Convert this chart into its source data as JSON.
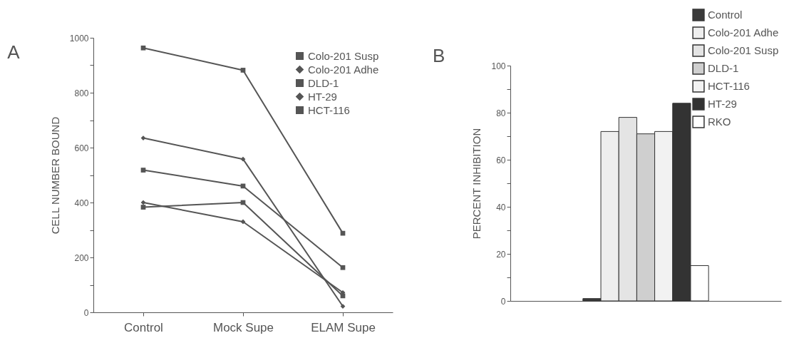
{
  "chart_data": [
    {
      "type": "line",
      "title": "A",
      "ylabel": "CELL NUMBER BOUND",
      "categories": [
        "Control",
        "Mock Supe",
        "ELAM Supe"
      ],
      "series": [
        {
          "name": "Colo-201 Susp",
          "color": "#555555",
          "marker": "square",
          "values": [
            383,
            400,
            60
          ]
        },
        {
          "name": "Colo-201 Adhe",
          "color": "#555555",
          "marker": "diamond",
          "values": [
            635,
            558,
            22
          ]
        },
        {
          "name": "DLD-1",
          "color": "#555555",
          "marker": "square",
          "values": [
            518,
            460,
            163
          ]
        },
        {
          "name": "HT-29",
          "color": "#555555",
          "marker": "diamond",
          "values": [
            400,
            330,
            72
          ]
        },
        {
          "name": "HCT-116",
          "color": "#555555",
          "marker": "square",
          "values": [
            963,
            882,
            288
          ]
        }
      ],
      "ylim": [
        0,
        1000
      ],
      "yticks": [
        0,
        {
          "value": 100,
          "label": null
        },
        200,
        {
          "value": 300,
          "label": null
        },
        400,
        {
          "value": 500,
          "label": null
        },
        600,
        {
          "value": 700,
          "label": null
        },
        800,
        {
          "value": 900,
          "label": null
        },
        1000
      ],
      "legend": "top right",
      "grid": false
    },
    {
      "type": "bar",
      "title": "B",
      "ylabel": "PERCENT INHIBITION",
      "categories": [
        null
      ],
      "series": [
        {
          "name": "Control",
          "color": "#3a3a3a",
          "values": [
            1
          ]
        },
        {
          "name": "Colo-201 Adhe",
          "color": "#eeeeee",
          "values": [
            72
          ]
        },
        {
          "name": "Colo-201 Susp",
          "color": "#e4e4e4",
          "values": [
            78
          ]
        },
        {
          "name": "DLD-1",
          "color": "#cfcfcf",
          "values": [
            71
          ]
        },
        {
          "name": "HCT-116",
          "color": "#f2f2f2",
          "values": [
            72
          ]
        },
        {
          "name": "HT-29",
          "color": "#333333",
          "values": [
            84
          ]
        },
        {
          "name": "RKO",
          "color": "#ffffff",
          "values": [
            15
          ]
        }
      ],
      "ylim": [
        0,
        100
      ],
      "yticks": [
        0,
        {
          "value": 10,
          "label": null
        },
        20,
        {
          "value": 30,
          "label": null
        },
        40,
        {
          "value": 50,
          "label": null
        },
        60,
        {
          "value": 70,
          "label": null
        },
        80,
        {
          "value": 90,
          "label": null
        },
        100
      ],
      "tick_labels": "y",
      "legend": "top right",
      "grid": false
    }
  ]
}
